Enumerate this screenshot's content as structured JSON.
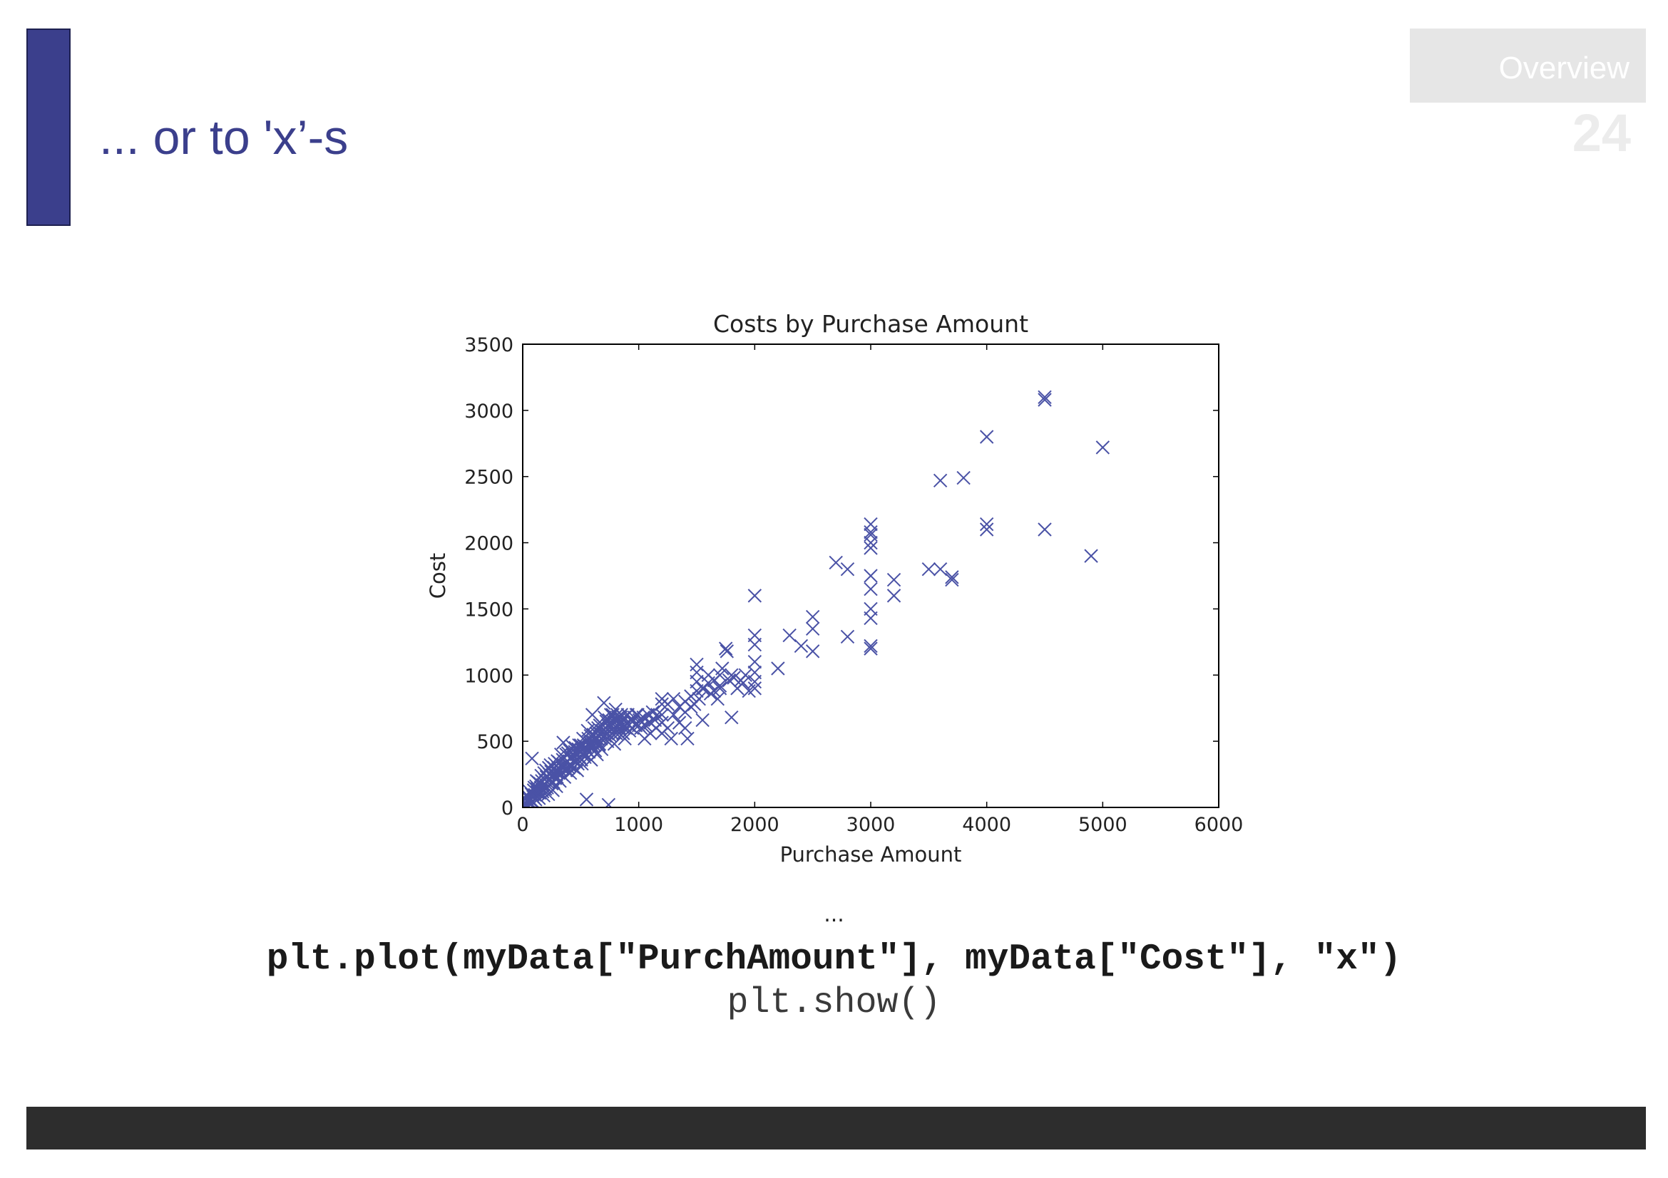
{
  "slide": {
    "title": "... or to 'x’-s",
    "section_label": "Overview",
    "page_number": "24",
    "ellipsis": "...",
    "code_line_1": "plt.plot(myData[\"PurchAmount\"], myData[\"Cost\"], \"x\")",
    "code_line_2": "plt.show()"
  },
  "colors": {
    "accent": "#3b3f8c",
    "marker": "#4a52a6",
    "footer": "#2d2d2d",
    "section_box": "#e6e6e6",
    "page_number": "#ececec"
  },
  "chart_data": {
    "type": "scatter",
    "title": "Costs by Purchase Amount",
    "xlabel": "Purchase Amount",
    "ylabel": "Cost",
    "xlim": [
      0,
      6000
    ],
    "ylim": [
      0,
      3500
    ],
    "xticks": [
      0,
      1000,
      2000,
      3000,
      4000,
      5000,
      6000
    ],
    "yticks": [
      0,
      500,
      1000,
      1500,
      2000,
      2500,
      3000,
      3500
    ],
    "grid": false,
    "series": [
      {
        "marker": "x",
        "points": [
          [
            0,
            0
          ],
          [
            10,
            20
          ],
          [
            15,
            5
          ],
          [
            20,
            60
          ],
          [
            25,
            30
          ],
          [
            30,
            10
          ],
          [
            35,
            50
          ],
          [
            40,
            90
          ],
          [
            45,
            15
          ],
          [
            50,
            40
          ],
          [
            55,
            70
          ],
          [
            60,
            120
          ],
          [
            65,
            55
          ],
          [
            70,
            30
          ],
          [
            75,
            100
          ],
          [
            80,
            370
          ],
          [
            85,
            45
          ],
          [
            90,
            80
          ],
          [
            95,
            130
          ],
          [
            100,
            150
          ],
          [
            105,
            95
          ],
          [
            110,
            60
          ],
          [
            115,
            160
          ],
          [
            120,
            200
          ],
          [
            125,
            140
          ],
          [
            130,
            110
          ],
          [
            135,
            190
          ],
          [
            140,
            70
          ],
          [
            145,
            110
          ],
          [
            150,
            180
          ],
          [
            155,
            150
          ],
          [
            160,
            240
          ],
          [
            165,
            200
          ],
          [
            170,
            120
          ],
          [
            175,
            170
          ],
          [
            180,
            90
          ],
          [
            185,
            260
          ],
          [
            190,
            210
          ],
          [
            195,
            140
          ],
          [
            200,
            280
          ],
          [
            205,
            230
          ],
          [
            210,
            150
          ],
          [
            215,
            190
          ],
          [
            220,
            100
          ],
          [
            225,
            300
          ],
          [
            230,
            250
          ],
          [
            235,
            210
          ],
          [
            240,
            320
          ],
          [
            245,
            270
          ],
          [
            250,
            180
          ],
          [
            255,
            240
          ],
          [
            260,
            130
          ],
          [
            265,
            190
          ],
          [
            270,
            300
          ],
          [
            275,
            330
          ],
          [
            280,
            220
          ],
          [
            285,
            270
          ],
          [
            290,
            160
          ],
          [
            295,
            230
          ],
          [
            300,
            350
          ],
          [
            305,
            300
          ],
          [
            310,
            260
          ],
          [
            315,
            340
          ],
          [
            320,
            200
          ],
          [
            325,
            280
          ],
          [
            330,
            400
          ],
          [
            335,
            250
          ],
          [
            340,
            300
          ],
          [
            345,
            360
          ],
          [
            350,
            490
          ],
          [
            355,
            320
          ],
          [
            360,
            230
          ],
          [
            365,
            290
          ],
          [
            370,
            340
          ],
          [
            375,
            400
          ],
          [
            380,
            280
          ],
          [
            385,
            350
          ],
          [
            390,
            410
          ],
          [
            395,
            300
          ],
          [
            400,
            320
          ],
          [
            405,
            430
          ],
          [
            410,
            260
          ],
          [
            415,
            370
          ],
          [
            420,
            380
          ],
          [
            425,
            310
          ],
          [
            430,
            460
          ],
          [
            435,
            390
          ],
          [
            440,
            300
          ],
          [
            445,
            350
          ],
          [
            450,
            420
          ],
          [
            455,
            450
          ],
          [
            460,
            350
          ],
          [
            465,
            400
          ],
          [
            470,
            280
          ],
          [
            475,
            330
          ],
          [
            480,
            440
          ],
          [
            485,
            470
          ],
          [
            490,
            380
          ],
          [
            495,
            420
          ],
          [
            500,
            470
          ],
          [
            505,
            360
          ],
          [
            510,
            330
          ],
          [
            515,
            430
          ],
          [
            520,
            520
          ],
          [
            525,
            470
          ],
          [
            530,
            400
          ],
          [
            535,
            380
          ],
          [
            540,
            460
          ],
          [
            545,
            500
          ],
          [
            550,
            60
          ],
          [
            555,
            430
          ],
          [
            560,
            580
          ],
          [
            565,
            520
          ],
          [
            570,
            420
          ],
          [
            575,
            460
          ],
          [
            580,
            490
          ],
          [
            585,
            540
          ],
          [
            590,
            360
          ],
          [
            595,
            470
          ],
          [
            600,
            700
          ],
          [
            605,
            500
          ],
          [
            610,
            550
          ],
          [
            615,
            600
          ],
          [
            620,
            470
          ],
          [
            625,
            430
          ],
          [
            630,
            520
          ],
          [
            635,
            560
          ],
          [
            640,
            400
          ],
          [
            645,
            520
          ],
          [
            650,
            600
          ],
          [
            655,
            470
          ],
          [
            660,
            480
          ],
          [
            665,
            620
          ],
          [
            670,
            560
          ],
          [
            675,
            520
          ],
          [
            680,
            440
          ],
          [
            685,
            580
          ],
          [
            690,
            620
          ],
          [
            695,
            530
          ],
          [
            700,
            790
          ],
          [
            705,
            680
          ],
          [
            710,
            540
          ],
          [
            715,
            600
          ],
          [
            720,
            650
          ],
          [
            725,
            560
          ],
          [
            730,
            500
          ],
          [
            735,
            620
          ],
          [
            740,
            20
          ],
          [
            745,
            660
          ],
          [
            750,
            600
          ],
          [
            755,
            540
          ],
          [
            760,
            700
          ],
          [
            765,
            620
          ],
          [
            770,
            560
          ],
          [
            775,
            700
          ],
          [
            780,
            650
          ],
          [
            785,
            600
          ],
          [
            790,
            480
          ],
          [
            795,
            660
          ],
          [
            800,
            740
          ],
          [
            805,
            560
          ],
          [
            810,
            600
          ],
          [
            815,
            700
          ],
          [
            820,
            680
          ],
          [
            825,
            630
          ],
          [
            830,
            560
          ],
          [
            835,
            600
          ],
          [
            840,
            640
          ],
          [
            845,
            680
          ],
          [
            850,
            700
          ],
          [
            855,
            640
          ],
          [
            865,
            560
          ],
          [
            870,
            600
          ],
          [
            875,
            680
          ],
          [
            880,
            520
          ],
          [
            890,
            600
          ],
          [
            900,
            640
          ],
          [
            905,
            700
          ],
          [
            915,
            620
          ],
          [
            920,
            580
          ],
          [
            930,
            660
          ],
          [
            945,
            600
          ],
          [
            950,
            650
          ],
          [
            960,
            680
          ],
          [
            975,
            620
          ],
          [
            980,
            700
          ],
          [
            990,
            700
          ],
          [
            1000,
            620
          ],
          [
            1005,
            660
          ],
          [
            1020,
            600
          ],
          [
            1040,
            680
          ],
          [
            1050,
            520
          ],
          [
            1060,
            620
          ],
          [
            1080,
            700
          ],
          [
            1100,
            560
          ],
          [
            1100,
            640
          ],
          [
            1120,
            720
          ],
          [
            1140,
            660
          ],
          [
            1150,
            600
          ],
          [
            1160,
            700
          ],
          [
            1200,
            820
          ],
          [
            1200,
            780
          ],
          [
            1200,
            700
          ],
          [
            1200,
            640
          ],
          [
            1200,
            560
          ],
          [
            1250,
            600
          ],
          [
            1250,
            780
          ],
          [
            1280,
            520
          ],
          [
            1300,
            700
          ],
          [
            1300,
            820
          ],
          [
            1350,
            640
          ],
          [
            1350,
            760
          ],
          [
            1400,
            720
          ],
          [
            1400,
            600
          ],
          [
            1400,
            800
          ],
          [
            1420,
            520
          ],
          [
            1450,
            760
          ],
          [
            1450,
            840
          ],
          [
            1480,
            780
          ],
          [
            1500,
            1080
          ],
          [
            1500,
            1020
          ],
          [
            1500,
            950
          ],
          [
            1500,
            880
          ],
          [
            1520,
            820
          ],
          [
            1550,
            660
          ],
          [
            1550,
            900
          ],
          [
            1560,
            900
          ],
          [
            1600,
            940
          ],
          [
            1600,
            1000
          ],
          [
            1620,
            860
          ],
          [
            1650,
            880
          ],
          [
            1650,
            960
          ],
          [
            1680,
            820
          ],
          [
            1700,
            1000
          ],
          [
            1700,
            900
          ],
          [
            1700,
            920
          ],
          [
            1720,
            1050
          ],
          [
            1750,
            1200
          ],
          [
            1760,
            1180
          ],
          [
            1780,
            960
          ],
          [
            1800,
            1000
          ],
          [
            1800,
            680
          ],
          [
            1820,
            980
          ],
          [
            1850,
            900
          ],
          [
            1880,
            960
          ],
          [
            1900,
            940
          ],
          [
            1920,
            1000
          ],
          [
            1950,
            880
          ],
          [
            2000,
            1600
          ],
          [
            2000,
            1300
          ],
          [
            2000,
            1230
          ],
          [
            2000,
            1100
          ],
          [
            2000,
            1020
          ],
          [
            2000,
            950
          ],
          [
            2000,
            900
          ],
          [
            2200,
            1050
          ],
          [
            2300,
            1300
          ],
          [
            2400,
            1220
          ],
          [
            2500,
            1440
          ],
          [
            2500,
            1350
          ],
          [
            2500,
            1180
          ],
          [
            2700,
            1850
          ],
          [
            2800,
            1800
          ],
          [
            2800,
            1290
          ],
          [
            3000,
            2140
          ],
          [
            3000,
            2080
          ],
          [
            3000,
            2060
          ],
          [
            3000,
            2000
          ],
          [
            3000,
            1960
          ],
          [
            3000,
            1750
          ],
          [
            3000,
            1650
          ],
          [
            3000,
            1500
          ],
          [
            3000,
            1430
          ],
          [
            3000,
            1220
          ],
          [
            3000,
            1200
          ],
          [
            3200,
            1720
          ],
          [
            3200,
            1600
          ],
          [
            3500,
            1800
          ],
          [
            3600,
            1800
          ],
          [
            3700,
            1740
          ],
          [
            3700,
            1720
          ],
          [
            3600,
            2470
          ],
          [
            3800,
            2490
          ],
          [
            4000,
            2800
          ],
          [
            4000,
            2140
          ],
          [
            4000,
            2100
          ],
          [
            4500,
            3100
          ],
          [
            4500,
            3080
          ],
          [
            4900,
            1900
          ],
          [
            4500,
            2100
          ],
          [
            5000,
            2720
          ]
        ]
      }
    ]
  }
}
